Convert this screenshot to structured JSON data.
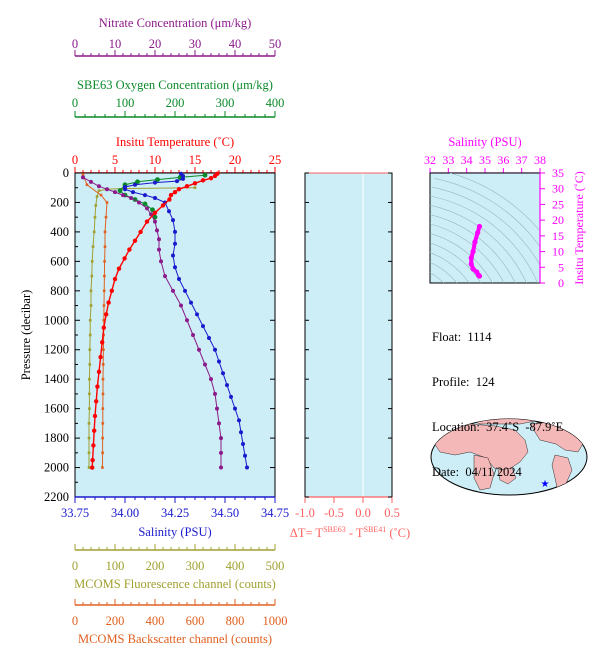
{
  "colors": {
    "nitrate": "#8b1a8b",
    "oxygen": "#0a8a2a",
    "temperature": "#ff0000",
    "salinity": "#1a1acc",
    "fluorescence": "#a0a030",
    "backscatter": "#e06020",
    "magenta": "#ff00ff",
    "plot_bg": "#cdeef6",
    "map_land": "#f4b8b8",
    "map_water": "#cdeef6"
  },
  "axes": {
    "nitrate": {
      "label": "Nitrate Concentration (μm/kg)",
      "ticks": [
        "0",
        "10",
        "20",
        "30",
        "40",
        "50"
      ],
      "range": [
        0,
        50
      ]
    },
    "oxygen": {
      "label": "SBE63 Oxygen Concentration (μm/kg)",
      "ticks": [
        "0",
        "100",
        "200",
        "300",
        "400"
      ],
      "range": [
        0,
        400
      ]
    },
    "temperature": {
      "label": "Insitu Temperature (˚C)",
      "ticks": [
        "0",
        "5",
        "10",
        "15",
        "20",
        "25"
      ],
      "range": [
        0,
        25
      ]
    },
    "pressure": {
      "label": "Pressure (decibar)",
      "ticks": [
        "0",
        "200",
        "400",
        "600",
        "800",
        "1000",
        "1200",
        "1400",
        "1600",
        "1800",
        "2000",
        "2200"
      ],
      "range": [
        0,
        2200
      ]
    },
    "salinity": {
      "label": "Salinity (PSU)",
      "ticks": [
        "33.75",
        "34.00",
        "34.25",
        "34.50",
        "34.75"
      ],
      "range": [
        33.75,
        34.75
      ]
    },
    "fluorescence": {
      "label": "MCOMS Fluorescence channel (counts)",
      "ticks": [
        "0",
        "100",
        "200",
        "300",
        "400",
        "500"
      ],
      "range": [
        0,
        500
      ]
    },
    "backscatter": {
      "label": "MCOMS Backscatter channel (counts)",
      "ticks": [
        "0",
        "200",
        "400",
        "600",
        "800",
        "1000"
      ],
      "range": [
        0,
        1000
      ]
    },
    "delta_t": {
      "label_prefix": "ΔT= T",
      "sup1": "SBE63",
      "label_mid": " - T",
      "sup2": "SBE41",
      "label_suffix": " (˚C)",
      "ticks": [
        "-1.0",
        "-0.5",
        "0.0",
        "0.5"
      ],
      "range": [
        -1.0,
        0.5
      ]
    },
    "ts_salinity": {
      "label": "Salinity (PSU)",
      "ticks": [
        "32",
        "33",
        "34",
        "35",
        "36",
        "37",
        "38"
      ],
      "range": [
        32,
        38
      ]
    },
    "ts_temperature": {
      "label": "Insitu Temperature (˚C)",
      "ticks": [
        "0",
        "5",
        "10",
        "15",
        "20",
        "25",
        "30",
        "35"
      ],
      "range": [
        0,
        35
      ]
    }
  },
  "info": {
    "float_label": "Float:",
    "float_value": "1114",
    "profile_label": "Profile:",
    "profile_value": "124",
    "location_label": "Location:",
    "location_value": "37.4˚S  -87.9˚E",
    "date_label": "Date:",
    "date_value": "04/11/2024"
  },
  "chart_data": {
    "type": "line",
    "x_axes": "multiple",
    "y_axis": {
      "label": "Pressure (decibar)",
      "range": [
        2200,
        0
      ]
    },
    "series": [
      {
        "name": "Insitu Temperature",
        "axis": "temperature",
        "points": [
          [
            17.8,
            5
          ],
          [
            17.5,
            20
          ],
          [
            17.0,
            35
          ],
          [
            16.0,
            50
          ],
          [
            15.0,
            70
          ],
          [
            14.0,
            90
          ],
          [
            13.0,
            110
          ],
          [
            12.5,
            130
          ],
          [
            12.0,
            150
          ],
          [
            11.8,
            180
          ],
          [
            11.0,
            220
          ],
          [
            10.0,
            270
          ],
          [
            9.0,
            330
          ],
          [
            8.2,
            400
          ],
          [
            7.5,
            460
          ],
          [
            6.8,
            520
          ],
          [
            6.2,
            580
          ],
          [
            5.5,
            650
          ],
          [
            5.0,
            720
          ],
          [
            4.6,
            800
          ],
          [
            4.2,
            880
          ],
          [
            3.9,
            960
          ],
          [
            3.6,
            1050
          ],
          [
            3.4,
            1150
          ],
          [
            3.2,
            1250
          ],
          [
            3.0,
            1350
          ],
          [
            2.8,
            1450
          ],
          [
            2.65,
            1550
          ],
          [
            2.5,
            1650
          ],
          [
            2.4,
            1750
          ],
          [
            2.3,
            1850
          ],
          [
            2.2,
            1950
          ],
          [
            2.15,
            2000
          ]
        ]
      },
      {
        "name": "Salinity",
        "axis": "salinity",
        "points": [
          [
            34.28,
            5
          ],
          [
            34.29,
            20
          ],
          [
            34.29,
            40
          ],
          [
            34.26,
            55
          ],
          [
            34.15,
            65
          ],
          [
            34.05,
            80
          ],
          [
            34.0,
            95
          ],
          [
            34.0,
            110
          ],
          [
            34.04,
            130
          ],
          [
            34.1,
            150
          ],
          [
            34.15,
            170
          ],
          [
            34.2,
            200
          ],
          [
            34.22,
            260
          ],
          [
            34.24,
            320
          ],
          [
            34.25,
            400
          ],
          [
            34.25,
            480
          ],
          [
            34.24,
            560
          ],
          [
            34.25,
            640
          ],
          [
            34.27,
            720
          ],
          [
            34.3,
            800
          ],
          [
            34.33,
            880
          ],
          [
            34.36,
            960
          ],
          [
            34.39,
            1040
          ],
          [
            34.42,
            1120
          ],
          [
            34.45,
            1200
          ],
          [
            34.47,
            1280
          ],
          [
            34.49,
            1360
          ],
          [
            34.51,
            1440
          ],
          [
            34.53,
            1520
          ],
          [
            34.55,
            1600
          ],
          [
            34.57,
            1680
          ],
          [
            34.58,
            1760
          ],
          [
            34.59,
            1840
          ],
          [
            34.6,
            1920
          ],
          [
            34.61,
            2000
          ]
        ]
      },
      {
        "name": "Nitrate Concentration",
        "axis": "nitrate",
        "points": [
          [
            2.0,
            30
          ],
          [
            4.0,
            60
          ],
          [
            6.0,
            90
          ],
          [
            8.0,
            110
          ],
          [
            10.0,
            130
          ],
          [
            12.0,
            150
          ],
          [
            14.0,
            170
          ],
          [
            16.0,
            200
          ],
          [
            18.0,
            240
          ],
          [
            19.0,
            280
          ],
          [
            20.0,
            330
          ],
          [
            20.5,
            390
          ],
          [
            21.0,
            450
          ],
          [
            21.0,
            520
          ],
          [
            21.5,
            600
          ],
          [
            22.5,
            700
          ],
          [
            24.5,
            800
          ],
          [
            26.5,
            900
          ],
          [
            28.0,
            1000
          ],
          [
            29.5,
            1100
          ],
          [
            31.0,
            1200
          ],
          [
            32.5,
            1300
          ],
          [
            34.0,
            1400
          ],
          [
            35.0,
            1500
          ],
          [
            35.5,
            1600
          ],
          [
            36.0,
            1700
          ],
          [
            36.5,
            1800
          ],
          [
            36.5,
            1900
          ],
          [
            36.5,
            2000
          ]
        ]
      },
      {
        "name": "SBE63 Oxygen Concentration",
        "axis": "oxygen",
        "points": [
          [
            260,
            15
          ],
          [
            210,
            30
          ],
          [
            165,
            45
          ],
          [
            125,
            60
          ],
          [
            100,
            80
          ],
          [
            90,
            120
          ],
          [
            100,
            150
          ],
          [
            120,
            180
          ],
          [
            140,
            210
          ],
          [
            155,
            250
          ],
          [
            160,
            300
          ]
        ]
      },
      {
        "name": "MCOMS Fluorescence channel",
        "axis": "fluorescence",
        "points": [
          [
            300,
            100
          ],
          [
            120,
            105
          ],
          [
            80,
            110
          ],
          [
            60,
            120
          ],
          [
            55,
            160
          ],
          [
            52,
            220
          ],
          [
            50,
            300
          ],
          [
            48,
            400
          ],
          [
            45,
            500
          ],
          [
            43,
            600
          ],
          [
            42,
            700
          ],
          [
            40,
            800
          ],
          [
            40,
            900
          ],
          [
            38,
            1000
          ],
          [
            38,
            1100
          ],
          [
            37,
            1200
          ],
          [
            37,
            1300
          ],
          [
            36,
            1400
          ],
          [
            36,
            1500
          ],
          [
            36,
            1600
          ],
          [
            35,
            1700
          ],
          [
            35,
            1800
          ],
          [
            35,
            1900
          ],
          [
            35,
            2000
          ]
        ]
      },
      {
        "name": "MCOMS Backscatter channel",
        "axis": "backscatter",
        "points": [
          [
            40,
            10
          ],
          [
            60,
            80
          ],
          [
            130,
            150
          ],
          [
            160,
            200
          ],
          [
            155,
            300
          ],
          [
            150,
            400
          ],
          [
            150,
            500
          ],
          [
            148,
            600
          ],
          [
            147,
            700
          ],
          [
            146,
            800
          ],
          [
            145,
            900
          ],
          [
            144,
            1000
          ],
          [
            143,
            1100
          ],
          [
            142,
            1200
          ],
          [
            141,
            1300
          ],
          [
            140,
            1400
          ],
          [
            140,
            1500
          ],
          [
            139,
            1600
          ],
          [
            139,
            1700
          ],
          [
            138,
            1800
          ],
          [
            138,
            1900
          ],
          [
            137,
            2000
          ]
        ]
      }
    ],
    "ts_diagram": {
      "points": [
        [
          34.7,
          18
        ],
        [
          34.6,
          16
        ],
        [
          34.45,
          13
        ],
        [
          34.35,
          10
        ],
        [
          34.25,
          8
        ],
        [
          34.25,
          6
        ],
        [
          34.35,
          4.5
        ],
        [
          34.55,
          3.5
        ],
        [
          34.65,
          2.5
        ],
        [
          34.7,
          2.2
        ]
      ]
    }
  }
}
